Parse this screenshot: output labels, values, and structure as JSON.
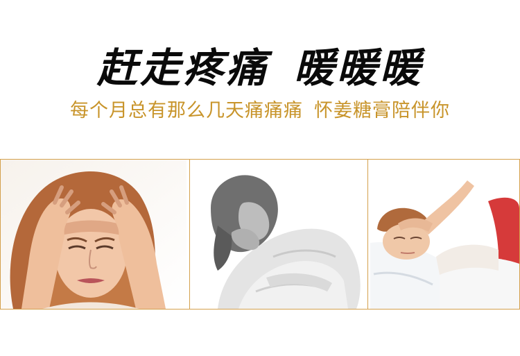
{
  "headline": {
    "part1": "赶走疼痛",
    "part2": "暖暖暖"
  },
  "tagline": {
    "part1": "每个月总有那么几天痛痛痛",
    "part2": "怀姜糖膏陪伴你"
  },
  "photos": [
    {
      "icon": "woman-holding-head-photo"
    },
    {
      "icon": "woman-doubled-over-photo"
    },
    {
      "icon": "woman-lying-in-bed-photo"
    }
  ],
  "colors": {
    "headline": "#0a0a0a",
    "tagline": "#c8942a",
    "frame": "#d4a04c"
  }
}
